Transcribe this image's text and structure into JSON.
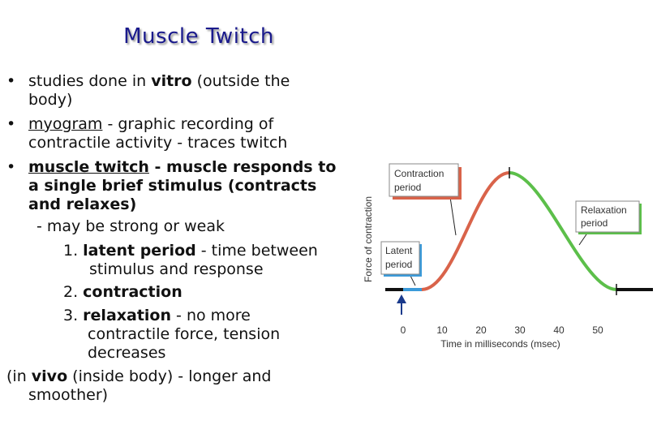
{
  "title": "Muscle Twitch",
  "lines": [
    [
      "•",
      "studies done in ",
      "vitro",
      " (outside the"
    ],
    [
      "body)"
    ],
    [
      "•",
      "myogram",
      " - graphic recording of"
    ],
    [
      "contractile activity - traces twitch"
    ],
    [
      "•",
      "muscle twitch",
      " - muscle responds to"
    ],
    [
      "a single brief stimulus (contracts"
    ],
    [
      "and relaxes)"
    ],
    [
      "- may be strong or weak"
    ],
    [
      "1. ",
      "latent period",
      " - time between"
    ],
    [
      "stimulus and response"
    ],
    [
      "2. ",
      "contraction"
    ],
    [
      "3. ",
      "relaxation",
      " - no more"
    ],
    [
      "contractile force, tension"
    ],
    [
      "decreases"
    ],
    [
      "(in ",
      "vivo",
      " (inside body) - longer and"
    ],
    [
      "smoother)"
    ]
  ],
  "figure": {
    "y_label": "Force of contraction",
    "x_label": "Time in milliseconds (msec)",
    "xticks": [
      0,
      10,
      20,
      30,
      40,
      50
    ],
    "contraction_label": [
      "Contraction",
      "period"
    ],
    "relaxation_label": [
      "Relaxation",
      "period"
    ],
    "latent_label": [
      "Latent",
      "period"
    ]
  }
}
